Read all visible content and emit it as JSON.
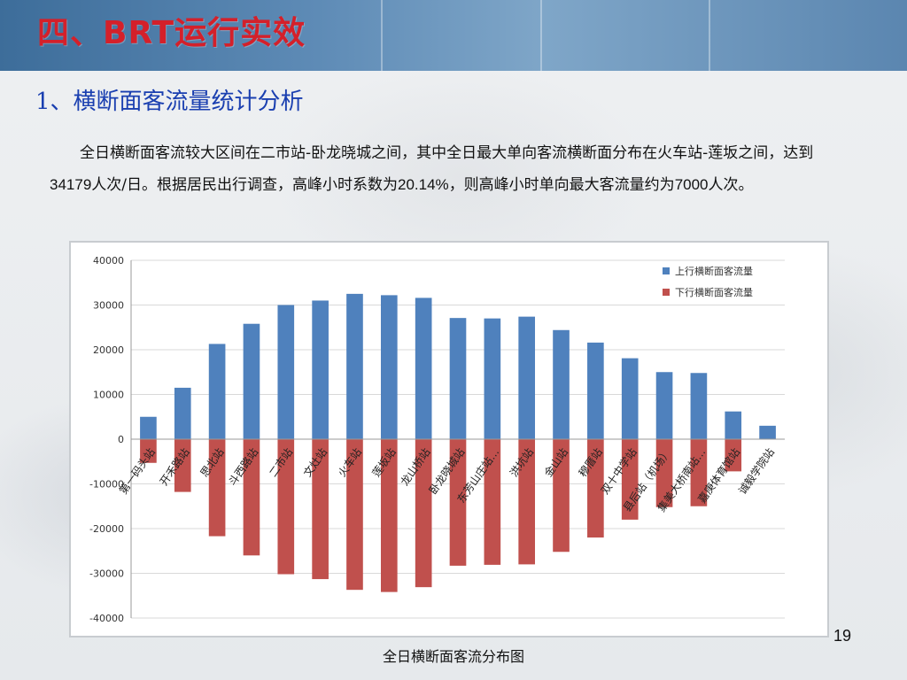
{
  "slide": {
    "title": "四、BRT运行实效",
    "subtitle": "1、横断面客流量统计分析",
    "paragraph_parts": [
      "全日横断面客流较大区间在二市站-卧龙晓城之间，其中全日最大单向客流横断面分布在火车站-莲坂之间，达到",
      "34179",
      "人次/日。根据居民出行调查，高峰小时系数为",
      "20.14%",
      "，则高峰小时单向最大客流量约为",
      "7000",
      "人次。"
    ],
    "caption": "全日横断面客流分布图",
    "page_number": "19"
  },
  "colors": {
    "title_red": "#d4202a",
    "subtitle_blue": "#1a3fb0",
    "up_series": "#4f81bd",
    "down_series": "#c0504d"
  },
  "chart_data": {
    "type": "bar",
    "title": "",
    "xlabel": "",
    "ylabel": "",
    "ylim": [
      -40000,
      40000
    ],
    "yticks": [
      40000,
      30000,
      20000,
      10000,
      0,
      -10000,
      -20000,
      -30000,
      -40000
    ],
    "grid": true,
    "legend_position": "top-right",
    "categories": [
      "第一码头站",
      "开禾路站",
      "思北站",
      "斗西路站",
      "二市站",
      "文灶站",
      "火车站",
      "莲坂站",
      "龙山桥站",
      "卧龙晓城站",
      "东芳山庄站…",
      "洪坑站",
      "金山站",
      "穆厝站",
      "双十中学站",
      "县后站（机场）",
      "集美大桥南站…",
      "嘉庚体育馆站",
      "诚毅学院站"
    ],
    "series": [
      {
        "name": "上行横断面客流量",
        "color": "#4f81bd",
        "values": [
          5000,
          11500,
          21300,
          25800,
          30000,
          31000,
          32500,
          32200,
          31600,
          27100,
          27000,
          27400,
          24400,
          21600,
          18100,
          15000,
          14800,
          6200,
          3000
        ]
      },
      {
        "name": "下行横断面客流量",
        "color": "#c0504d",
        "values": [
          -5300,
          -11800,
          -21700,
          -26000,
          -30200,
          -31300,
          -33700,
          -34179,
          -33100,
          -28300,
          -28100,
          -28000,
          -25200,
          -22000,
          -18000,
          -15200,
          -15000,
          -7200,
          0
        ]
      }
    ]
  }
}
